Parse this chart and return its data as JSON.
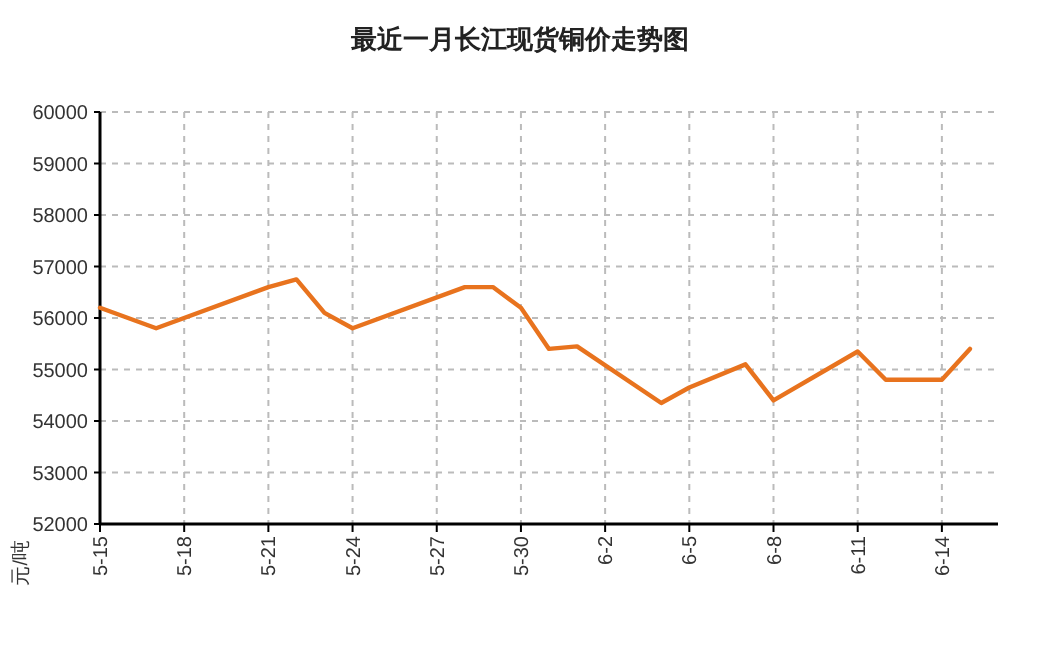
{
  "chart_data": {
    "type": "line",
    "title": "最近一月长江现货铜价走势图",
    "ylabel": "元/吨",
    "x": [
      "--05-15",
      "--05-17",
      "--05-21",
      "--05-22",
      "--05-23",
      "--05-24",
      "--05-28",
      "--05-29",
      "--05-30",
      "--05-31",
      "--06-01",
      "--06-04",
      "--06-05",
      "--06-07",
      "--06-08",
      "--06-11",
      "--06-12",
      "--06-14",
      "--06-15"
    ],
    "series": [
      {
        "color": "#e8731e",
        "values": [
          56200,
          55800,
          56600,
          56750,
          56100,
          55800,
          56600,
          56600,
          56200,
          55400,
          55450,
          54350,
          54650,
          55100,
          54400,
          55350,
          54800,
          54800,
          55400
        ]
      }
    ],
    "xlim": [
      "--05-15",
      "--06-16"
    ],
    "xticks": [
      {
        "value": "--05-15",
        "label": "5-15"
      },
      {
        "value": "--05-18",
        "label": "5-18"
      },
      {
        "value": "--05-21",
        "label": "5-21"
      },
      {
        "value": "--05-24",
        "label": "5-24"
      },
      {
        "value": "--05-27",
        "label": "5-27"
      },
      {
        "value": "--05-30",
        "label": "5-30"
      },
      {
        "value": "--06-02",
        "label": "6-2"
      },
      {
        "value": "--06-05",
        "label": "6-5"
      },
      {
        "value": "--06-08",
        "label": "6-8"
      },
      {
        "value": "--06-11",
        "label": "6-11"
      },
      {
        "value": "--06-14",
        "label": "6-14"
      }
    ],
    "ylim": [
      52000,
      60000
    ],
    "yticks": [
      52000,
      53000,
      54000,
      55000,
      56000,
      57000,
      58000,
      59000,
      60000
    ],
    "grid": true,
    "marker": "none",
    "line_style": "solid"
  }
}
